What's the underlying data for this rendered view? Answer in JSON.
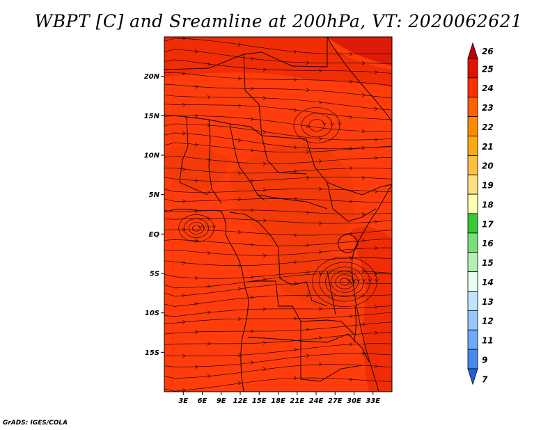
{
  "title": "WBPT [C] and Sreamline at 200hPa, VT: 2020062621",
  "footer": "GrADS: IGES/COLA",
  "map": {
    "lon_range": [
      0,
      36
    ],
    "lat_range": [
      -20,
      25
    ],
    "lat_ticks": [
      {
        "value": 20,
        "label": "20N"
      },
      {
        "value": 15,
        "label": "15N"
      },
      {
        "value": 10,
        "label": "10N"
      },
      {
        "value": 5,
        "label": "5N"
      },
      {
        "value": 0,
        "label": "EQ"
      },
      {
        "value": -5,
        "label": "5S"
      },
      {
        "value": -10,
        "label": "10S"
      },
      {
        "value": -15,
        "label": "15S"
      }
    ],
    "lon_ticks": [
      {
        "value": 3,
        "label": "3E"
      },
      {
        "value": 6,
        "label": "6E"
      },
      {
        "value": 9,
        "label": "9E"
      },
      {
        "value": 12,
        "label": "12E"
      },
      {
        "value": 15,
        "label": "15E"
      },
      {
        "value": 18,
        "label": "18E"
      },
      {
        "value": 21,
        "label": "21E"
      },
      {
        "value": 24,
        "label": "24E"
      },
      {
        "value": 27,
        "label": "27E"
      },
      {
        "value": 30,
        "label": "30E"
      },
      {
        "value": 33,
        "label": "33E"
      }
    ],
    "base_color": "#ff3d0c",
    "shading_colors": [
      "#ee2a06",
      "#f33a0a",
      "#e8500e",
      "#d81408"
    ]
  },
  "colorbar": {
    "labels": [
      "26",
      "25",
      "24",
      "23",
      "22",
      "21",
      "20",
      "19",
      "18",
      "17",
      "16",
      "15",
      "14",
      "13",
      "12",
      "11",
      "9",
      "7"
    ],
    "colors": [
      "#c00000",
      "#e11200",
      "#ff3000",
      "#ff6000",
      "#ff8c00",
      "#ffaa10",
      "#ffc040",
      "#ffe080",
      "#ffffb0",
      "#38c838",
      "#78e078",
      "#b4f0b4",
      "#e6fff0",
      "#c0e4ff",
      "#96c8ff",
      "#6ea8ff",
      "#4888ee",
      "#2060d8"
    ]
  }
}
